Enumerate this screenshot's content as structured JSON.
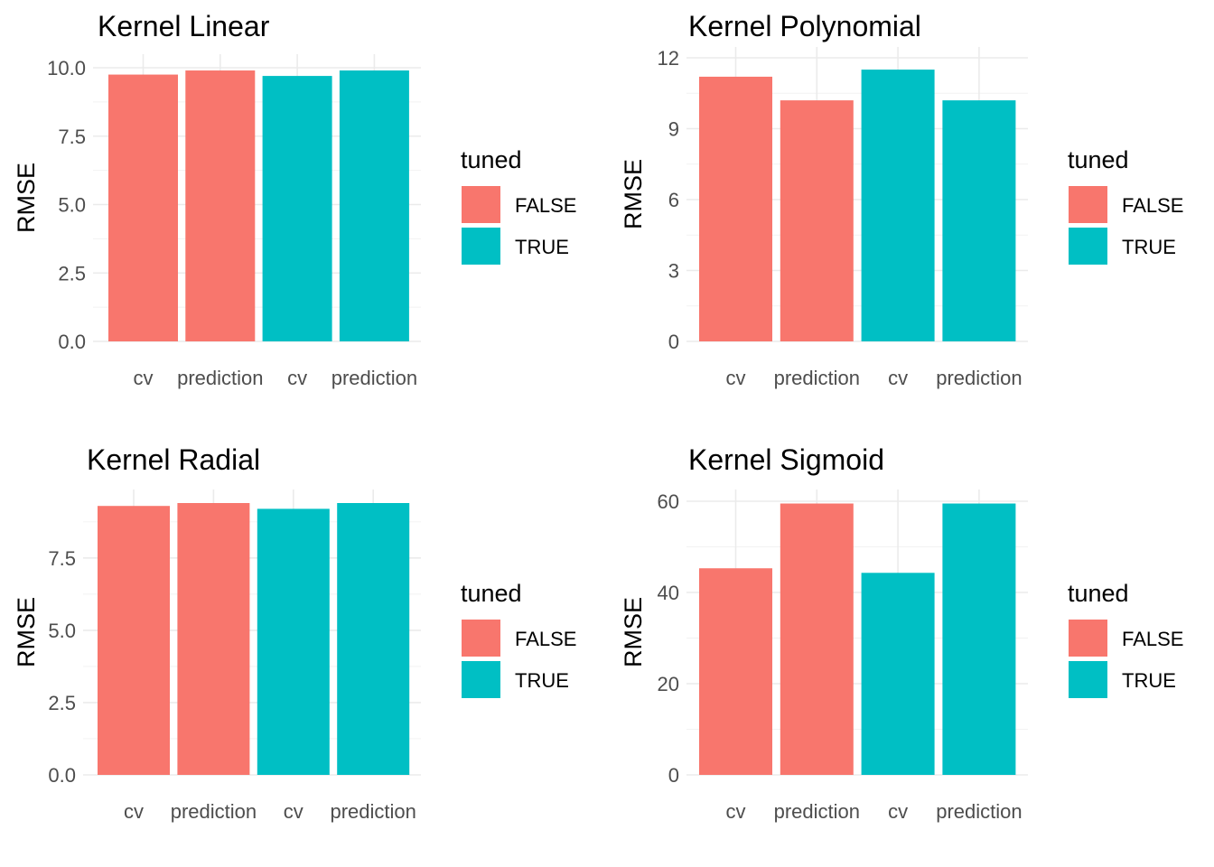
{
  "chart_data": [
    {
      "type": "bar",
      "title": "Kernel Linear",
      "ylabel": "RMSE",
      "xlabel": "",
      "categories": [
        "cv",
        "prediction",
        "cv",
        "prediction"
      ],
      "fill_groups": [
        "FALSE",
        "FALSE",
        "TRUE",
        "TRUE"
      ],
      "values": [
        9.75,
        9.9,
        9.7,
        9.9
      ],
      "ylim": [
        0,
        10
      ],
      "yticks": [
        0,
        2.5,
        5,
        7.5,
        10
      ],
      "ytick_labels": [
        "0.0",
        "2.5",
        "5.0",
        "7.5",
        "10.0"
      ],
      "legend": {
        "title": "tuned",
        "entries": [
          "FALSE",
          "TRUE"
        ],
        "position": "right"
      }
    },
    {
      "type": "bar",
      "title": "Kernel Polynomial",
      "ylabel": "RMSE",
      "xlabel": "",
      "categories": [
        "cv",
        "prediction",
        "cv",
        "prediction"
      ],
      "fill_groups": [
        "FALSE",
        "FALSE",
        "TRUE",
        "TRUE"
      ],
      "values": [
        11.2,
        10.2,
        11.5,
        10.2
      ],
      "ylim": [
        0,
        12
      ],
      "yticks": [
        0,
        3,
        6,
        9,
        12
      ],
      "ytick_labels": [
        "0",
        "3",
        "6",
        "9",
        "12"
      ],
      "legend": {
        "title": "tuned",
        "entries": [
          "FALSE",
          "TRUE"
        ],
        "position": "right"
      }
    },
    {
      "type": "bar",
      "title": "Kernel Radial",
      "ylabel": "RMSE",
      "xlabel": "",
      "categories": [
        "cv",
        "prediction",
        "cv",
        "prediction"
      ],
      "fill_groups": [
        "FALSE",
        "FALSE",
        "TRUE",
        "TRUE"
      ],
      "values": [
        9.3,
        9.4,
        9.2,
        9.4
      ],
      "ylim": [
        0,
        9.4
      ],
      "yticks": [
        0,
        2.5,
        5,
        7.5
      ],
      "ytick_labels": [
        "0.0",
        "2.5",
        "5.0",
        "7.5"
      ],
      "legend": {
        "title": "tuned",
        "entries": [
          "FALSE",
          "TRUE"
        ],
        "position": "right"
      }
    },
    {
      "type": "bar",
      "title": "Kernel Sigmoid",
      "ylabel": "RMSE",
      "xlabel": "",
      "categories": [
        "cv",
        "prediction",
        "cv",
        "prediction"
      ],
      "fill_groups": [
        "FALSE",
        "FALSE",
        "TRUE",
        "TRUE"
      ],
      "values": [
        45.3,
        59.5,
        44.3,
        59.5
      ],
      "ylim": [
        0,
        60
      ],
      "yticks": [
        0,
        20,
        40,
        60
      ],
      "ytick_labels": [
        "0",
        "20",
        "40",
        "60"
      ],
      "legend": {
        "title": "tuned",
        "entries": [
          "FALSE",
          "TRUE"
        ],
        "position": "right"
      }
    }
  ],
  "colors": {
    "FALSE": "#F8766D",
    "TRUE": "#00BFC4"
  }
}
